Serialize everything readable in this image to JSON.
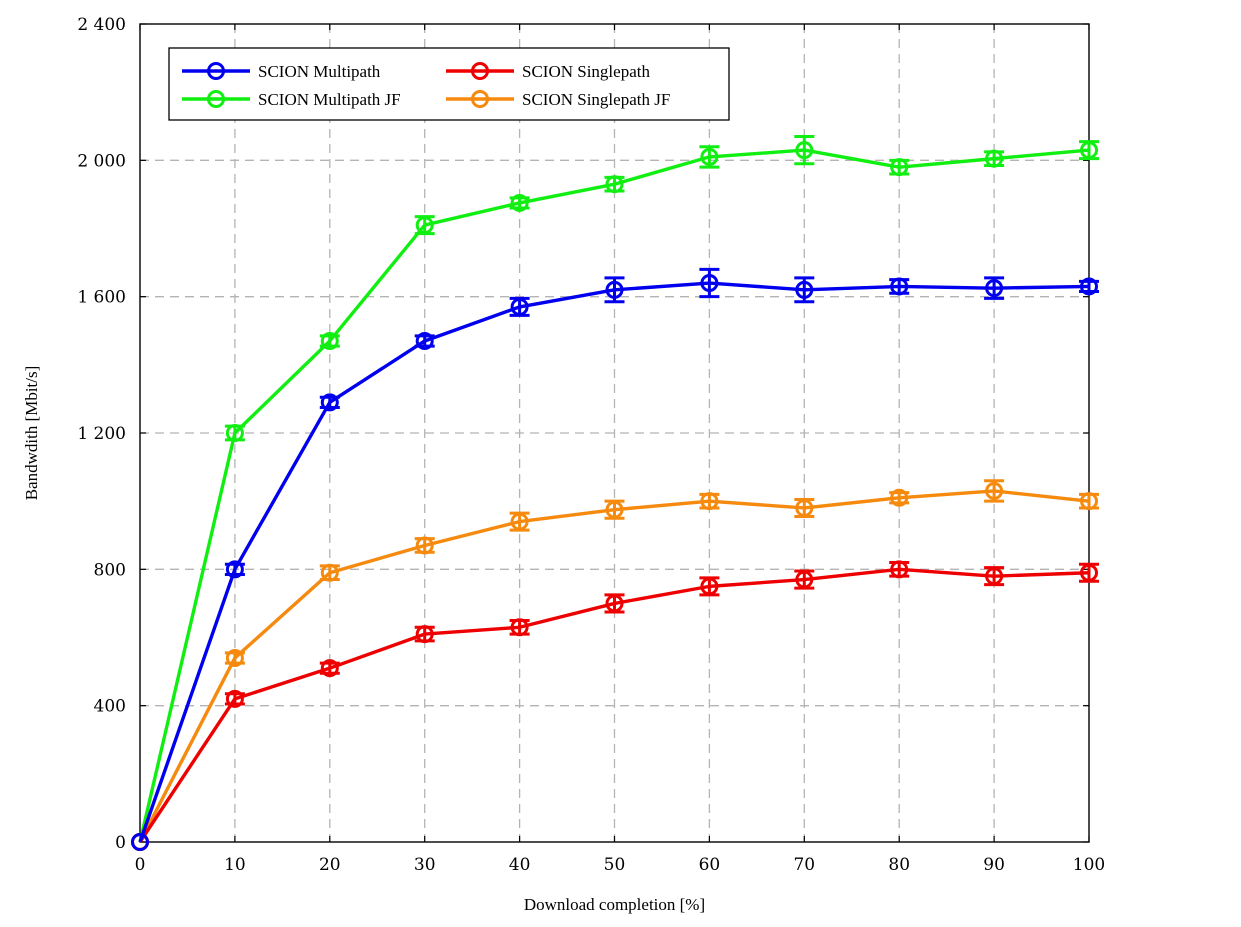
{
  "chart_data": {
    "type": "line",
    "xlabel": "Download completion [%]",
    "ylabel": "Bandwdith [Mbit/s]",
    "xlim": [
      0,
      100
    ],
    "ylim": [
      0,
      2400
    ],
    "xticks": [
      0,
      10,
      20,
      30,
      40,
      50,
      60,
      70,
      80,
      90,
      100
    ],
    "yticks": [
      0,
      400,
      800,
      1200,
      1600,
      2000,
      2400
    ],
    "xtick_labels": [
      "0",
      "10",
      "20",
      "30",
      "40",
      "50",
      "60",
      "70",
      "80",
      "90",
      "100"
    ],
    "ytick_labels": [
      "0",
      "400",
      "800",
      "1 200",
      "1 600",
      "2 000",
      "2 400"
    ],
    "grid": true,
    "legend_position": "top-left",
    "x": [
      0,
      10,
      20,
      30,
      40,
      50,
      60,
      70,
      80,
      90,
      100
    ],
    "series": [
      {
        "name": "SCION Multipath",
        "color": "#0000ee",
        "values": [
          0,
          800,
          1290,
          1470,
          1570,
          1620,
          1640,
          1620,
          1630,
          1625,
          1630
        ],
        "errors": [
          0,
          15,
          15,
          15,
          25,
          35,
          40,
          35,
          20,
          30,
          15
        ]
      },
      {
        "name": "SCION Singlepath",
        "color": "#ee0000",
        "values": [
          0,
          420,
          510,
          610,
          630,
          700,
          750,
          770,
          800,
          780,
          790
        ],
        "errors": [
          0,
          15,
          15,
          20,
          20,
          25,
          25,
          25,
          20,
          25,
          25
        ]
      },
      {
        "name": "SCION Multipath JF",
        "color": "#11ee11",
        "values": [
          0,
          1200,
          1470,
          1810,
          1875,
          1930,
          2010,
          2030,
          1980,
          2005,
          2030
        ],
        "errors": [
          0,
          20,
          15,
          25,
          15,
          20,
          30,
          40,
          20,
          20,
          25
        ]
      },
      {
        "name": "SCION Singlepath JF",
        "color": "#f58a0f",
        "values": [
          0,
          540,
          790,
          870,
          940,
          975,
          1000,
          980,
          1010,
          1030,
          1000
        ],
        "errors": [
          0,
          15,
          20,
          20,
          25,
          25,
          20,
          25,
          15,
          30,
          20
        ]
      }
    ]
  }
}
